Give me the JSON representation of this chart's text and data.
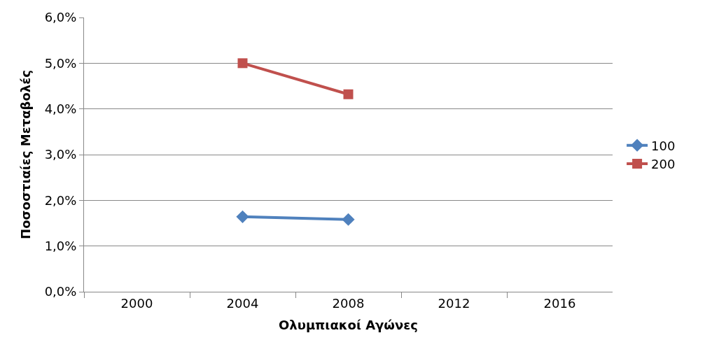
{
  "chart_data": {
    "type": "line",
    "categories": [
      "2000",
      "2004",
      "2008",
      "2012",
      "2016"
    ],
    "xlabel": "Ολυμπιακοί Αγώνες",
    "ylabel": "Ποσοστιαίες Μεταβολές",
    "series": [
      {
        "name": "100",
        "color": "#4f81bd",
        "marker": "diamond",
        "values": [
          null,
          1.64,
          1.58,
          null,
          null
        ]
      },
      {
        "name": "200",
        "color": "#c0504d",
        "marker": "square",
        "values": [
          null,
          5.0,
          4.32,
          null,
          null
        ]
      }
    ],
    "ylim": [
      0,
      6
    ],
    "yticks": [
      {
        "value": 0,
        "label": "0,0%"
      },
      {
        "value": 1,
        "label": "1,0%"
      },
      {
        "value": 2,
        "label": "2,0%"
      },
      {
        "value": 3,
        "label": "3,0%"
      },
      {
        "value": 4,
        "label": "4,0%"
      },
      {
        "value": 5,
        "label": "5,0%"
      },
      {
        "value": 6,
        "label": "6,0%"
      }
    ],
    "grid": "y",
    "legend": "right",
    "line_style": "solid"
  }
}
